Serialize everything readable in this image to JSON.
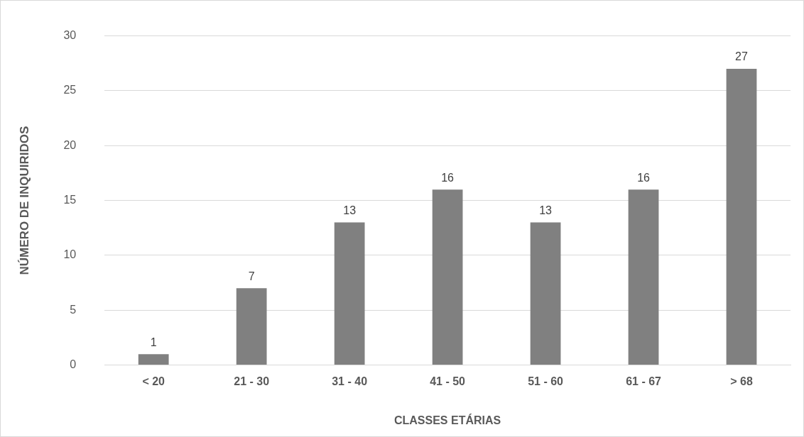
{
  "chart_data": {
    "type": "bar",
    "xlabel": "CLASSES ETÁRIAS",
    "ylabel": "NÚMERO DE INQUIRIDOS",
    "categories": [
      "< 20",
      "21 - 30",
      "31 - 40",
      "41 - 50",
      "51 - 60",
      "61 - 67",
      "> 68"
    ],
    "values": [
      1,
      7,
      13,
      16,
      13,
      16,
      27
    ],
    "color": "#808080",
    "ylim": [
      0,
      30
    ],
    "yticks": [
      0,
      5,
      10,
      15,
      20,
      25,
      30
    ],
    "grid": "y",
    "legend": false,
    "data_labels": true
  }
}
